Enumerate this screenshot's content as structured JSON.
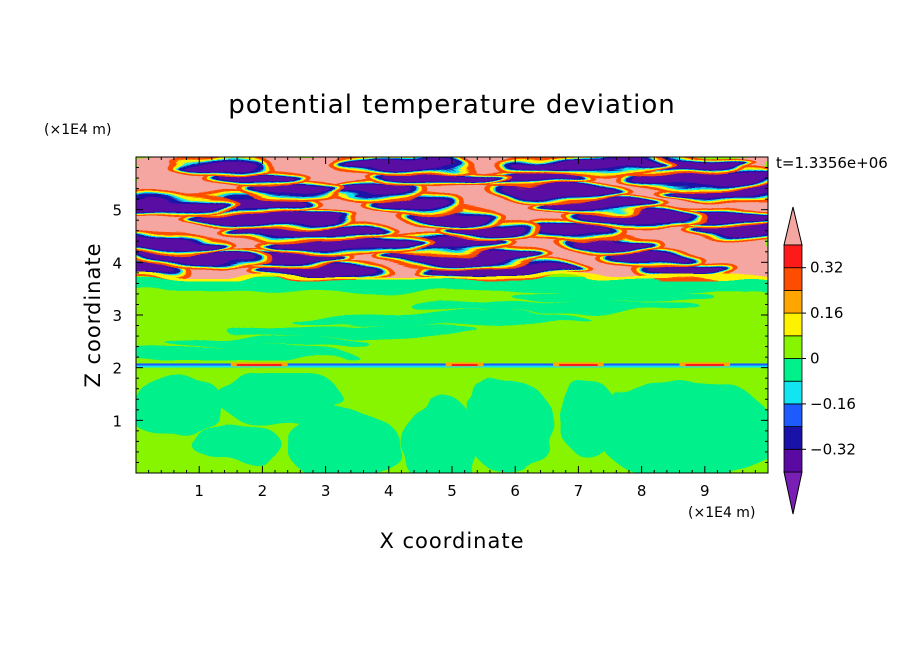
{
  "chart_data": {
    "type": "heatmap",
    "title": "potential temperature deviation",
    "xlabel": "X coordinate",
    "ylabel": "Z coordinate",
    "x_unit": "(×1E4 m)",
    "y_unit": "(×1E4 m)",
    "time_label": "t=1.3356e+06",
    "xlim": [
      0,
      10
    ],
    "ylim": [
      0,
      6
    ],
    "x_ticks": [
      "1",
      "2",
      "3",
      "4",
      "5",
      "6",
      "7",
      "8",
      "9"
    ],
    "y_ticks": [
      "1",
      "2",
      "3",
      "4",
      "5"
    ],
    "colorbar": {
      "levels": [
        -0.4,
        -0.32,
        -0.24,
        -0.16,
        -0.08,
        0,
        0.08,
        0.16,
        0.24,
        0.32,
        0.4
      ],
      "colors": [
        "#7a1fb5",
        "#5a0aa3",
        "#1a12a8",
        "#1e5bff",
        "#11e5f0",
        "#00f08c",
        "#88f500",
        "#fff200",
        "#ffa500",
        "#ff4d00",
        "#ff1a1a",
        "#f5a6a0"
      ],
      "tick_labels": [
        "0.32",
        "0.16",
        "0",
        "−0.16",
        "−0.32"
      ],
      "extend": "both"
    },
    "regions": {
      "lower_layer": {
        "z_range": [
          0,
          2.0
        ],
        "dominant": [
          "0 to 0.08",
          "-0.08 to 0"
        ]
      },
      "interface": {
        "z": 2.05,
        "description": "thin band of ±0.32 at z≈2"
      },
      "middle_layer": {
        "z_range": [
          2.1,
          3.7
        ],
        "dominant": [
          "0 to 0.08",
          "-0.08 to 0"
        ]
      },
      "upper_layer": {
        "z_range": [
          3.7,
          6.0
        ],
        "dominant": [
          ">0.4",
          "<-0.4"
        ]
      }
    }
  }
}
